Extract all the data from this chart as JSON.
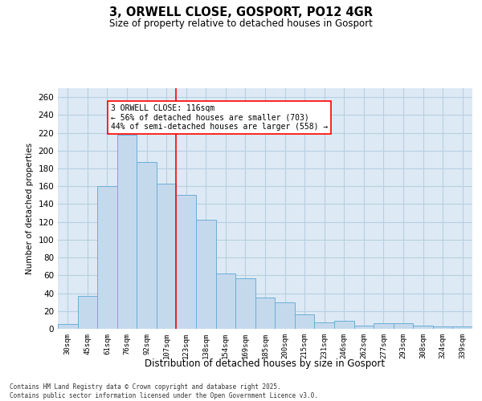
{
  "title1": "3, ORWELL CLOSE, GOSPORT, PO12 4GR",
  "title2": "Size of property relative to detached houses in Gosport",
  "xlabel": "Distribution of detached houses by size in Gosport",
  "ylabel": "Number of detached properties",
  "categories": [
    "30sqm",
    "45sqm",
    "61sqm",
    "76sqm",
    "92sqm",
    "107sqm",
    "123sqm",
    "138sqm",
    "154sqm",
    "169sqm",
    "185sqm",
    "200sqm",
    "215sqm",
    "231sqm",
    "246sqm",
    "262sqm",
    "277sqm",
    "293sqm",
    "308sqm",
    "324sqm",
    "339sqm"
  ],
  "values": [
    5,
    37,
    160,
    218,
    187,
    163,
    150,
    122,
    62,
    57,
    35,
    30,
    16,
    7,
    9,
    4,
    6,
    6,
    4,
    3,
    3
  ],
  "bar_color": "#c5d9ed",
  "bar_edge_color": "#6baed6",
  "grid_color": "#b8cfe0",
  "background_color": "#ddeaf5",
  "vline_x_idx": 6,
  "vline_color": "red",
  "annotation_text": "3 ORWELL CLOSE: 116sqm\n← 56% of detached houses are smaller (703)\n44% of semi-detached houses are larger (558) →",
  "annotation_box_color": "white",
  "annotation_box_edge_color": "red",
  "footnote": "Contains HM Land Registry data © Crown copyright and database right 2025.\nContains public sector information licensed under the Open Government Licence v3.0.",
  "ylim": [
    0,
    270
  ],
  "yticks": [
    0,
    20,
    40,
    60,
    80,
    100,
    120,
    140,
    160,
    180,
    200,
    220,
    240,
    260
  ]
}
